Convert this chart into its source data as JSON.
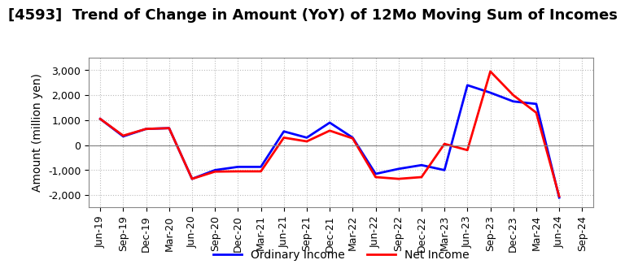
{
  "title": "[4593]  Trend of Change in Amount (YoY) of 12Mo Moving Sum of Incomes",
  "ylabel": "Amount (million yen)",
  "x_labels": [
    "Jun-19",
    "Sep-19",
    "Dec-19",
    "Mar-20",
    "Jun-20",
    "Sep-20",
    "Dec-20",
    "Mar-21",
    "Jun-21",
    "Sep-21",
    "Dec-21",
    "Mar-22",
    "Jun-22",
    "Sep-22",
    "Dec-22",
    "Mar-23",
    "Jun-23",
    "Sep-23",
    "Dec-23",
    "Mar-24",
    "Jun-24",
    "Sep-24"
  ],
  "ordinary_income": [
    1050,
    350,
    650,
    680,
    -1350,
    -1000,
    -900,
    -870,
    550,
    300,
    900,
    300,
    -1150,
    -950,
    -800,
    -1000,
    2400,
    2100,
    1750,
    1650,
    -2100,
    null
  ],
  "net_income": [
    1050,
    380,
    650,
    680,
    -1350,
    -1060,
    -1050,
    -1030,
    300,
    150,
    580,
    270,
    -1280,
    -1350,
    -1280,
    50,
    -200,
    2950,
    2000,
    1300,
    -2050,
    null
  ],
  "ordinary_income_color": "#0000ff",
  "net_income_color": "#ff0000",
  "ylim": [
    -2500,
    3500
  ],
  "yticks": [
    -2000,
    -1000,
    0,
    1000,
    2000,
    3000
  ],
  "background_color": "#ffffff",
  "grid_color": "#bbbbbb",
  "title_fontsize": 13,
  "axis_fontsize": 10,
  "tick_fontsize": 9,
  "legend_fontsize": 10,
  "linewidth": 2.0
}
